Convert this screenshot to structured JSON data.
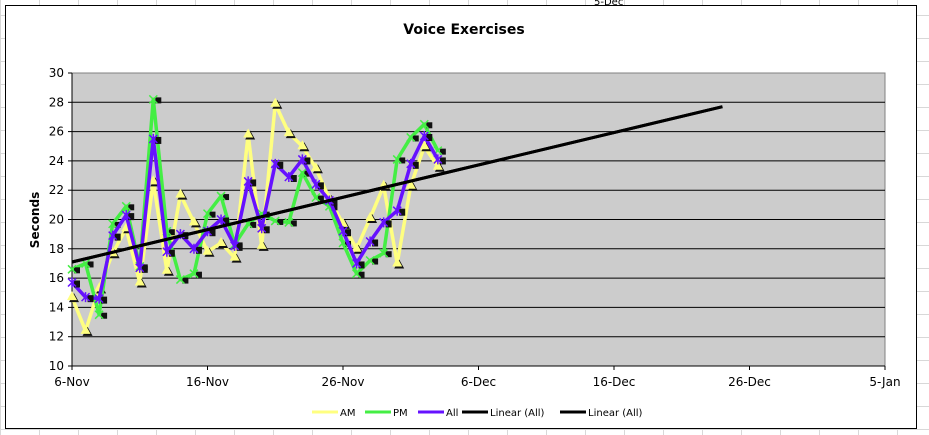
{
  "sheet": {
    "cut_cell_text": "5-Dec"
  },
  "chart_data": {
    "type": "line",
    "title": "Voice Exercises",
    "xlabel": "",
    "ylabel": "Seconds",
    "ylim": [
      10,
      30
    ],
    "yticks": [
      "10",
      "12",
      "14",
      "16",
      "18",
      "20",
      "22",
      "24",
      "26",
      "28",
      "30"
    ],
    "xlim": [
      "2006-11-06",
      "2007-01-05"
    ],
    "xticks": [
      {
        "date": "2006-11-06",
        "label": "6-Nov"
      },
      {
        "date": "2006-11-16",
        "label": "16-Nov"
      },
      {
        "date": "2006-11-26",
        "label": "26-Nov"
      },
      {
        "date": "2006-12-06",
        "label": "6-Dec"
      },
      {
        "date": "2006-12-16",
        "label": "16-Dec"
      },
      {
        "date": "2006-12-26",
        "label": "26-Dec"
      },
      {
        "date": "2007-01-05",
        "label": "5-Jan"
      }
    ],
    "grid": "horizontal",
    "plot_background": "#cccccc",
    "legend_position": "bottom",
    "x": [
      "2006-11-06",
      "2006-11-07",
      "2006-11-08",
      "2006-11-09",
      "2006-11-10",
      "2006-11-11",
      "2006-11-12",
      "2006-11-13",
      "2006-11-14",
      "2006-11-15",
      "2006-11-16",
      "2006-11-17",
      "2006-11-18",
      "2006-11-19",
      "2006-11-20",
      "2006-11-21",
      "2006-11-22",
      "2006-11-23",
      "2006-11-24",
      "2006-11-25",
      "2006-11-26",
      "2006-11-27",
      "2006-11-28",
      "2006-11-29",
      "2006-11-30",
      "2006-12-01",
      "2006-12-02",
      "2006-12-03"
    ],
    "series": [
      {
        "name": "AM",
        "color": "#ffff80",
        "marker": "triangle",
        "values": [
          14.7,
          12.4,
          15.3,
          17.7,
          19.4,
          15.7,
          22.6,
          16.5,
          21.7,
          19.8,
          17.8,
          18.4,
          17.4,
          25.8,
          18.2,
          27.9,
          25.9,
          25.0,
          23.5,
          21.4,
          19.7,
          18.0,
          20.1,
          22.3,
          17.0,
          22.3,
          25.0,
          23.6
        ]
      },
      {
        "name": "PM",
        "color": "#44ee44",
        "marker": "x",
        "values": [
          16.6,
          17.0,
          13.5,
          19.7,
          20.9,
          16.8,
          28.2,
          19.2,
          15.9,
          16.3,
          20.4,
          21.6,
          18.3,
          19.7,
          20.4,
          19.9,
          19.8,
          23.2,
          21.5,
          20.9,
          18.4,
          16.3,
          17.2,
          17.7,
          24.1,
          25.6,
          26.5,
          24.7
        ]
      },
      {
        "name": "All",
        "color": "#6611ff",
        "marker": "star",
        "values": [
          15.7,
          14.7,
          14.6,
          18.9,
          20.3,
          16.7,
          25.5,
          17.8,
          19.0,
          18.0,
          19.2,
          20.0,
          18.2,
          22.6,
          19.4,
          23.8,
          22.9,
          24.1,
          22.4,
          21.3,
          19.2,
          17.0,
          18.5,
          19.8,
          20.6,
          23.8,
          25.7,
          24.1
        ]
      }
    ],
    "trendlines": [
      {
        "name": "Linear (All)",
        "color": "#000000",
        "x": [
          "2006-11-06",
          "2006-12-24"
        ],
        "y": [
          17.1,
          27.7
        ]
      },
      {
        "name": "Linear (All)",
        "color": "#000000",
        "x": [
          "2006-11-06",
          "2006-12-24"
        ],
        "y": [
          17.1,
          27.7
        ]
      }
    ]
  }
}
